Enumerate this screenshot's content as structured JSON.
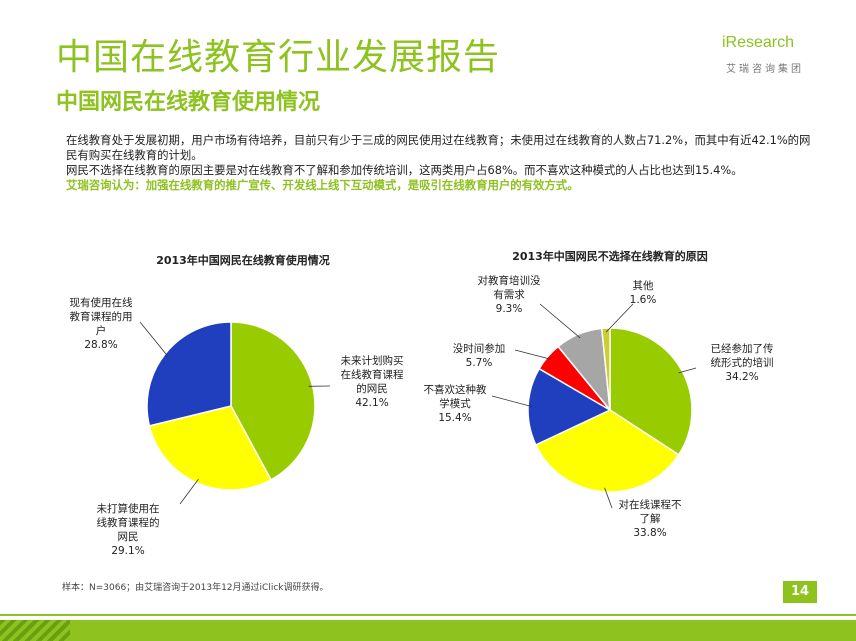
{
  "header": {
    "title": "中国在线教育行业发展报告",
    "subtitle": "中国网民在线教育使用情况",
    "logo_text": "iResearch",
    "logo_sub": "艾瑞咨询集团"
  },
  "body": {
    "para1": "在线教育处于发展初期，用户市场有待培养，目前只有少于三成的网民使用过在线教育；未使用过在线教育的人数占71.2%，而其中有近42.1%的网民有购买在线教育的计划。",
    "para2": "网民不选择在线教育的原因主要是对在线教育不了解和参加传统培训，这两类用户占68%。而不喜欢这种模式的人占比也达到15.4%。",
    "conclusion": "艾瑞咨询认为：加强在线教育的推广宣传、开发线上线下互动模式，是吸引在线教育用户的有效方式。"
  },
  "chart_data": [
    {
      "type": "pie",
      "title": "2013年中国网民在线教育使用情况",
      "slices": [
        {
          "label": "未来计划购买在线教育课程的网民",
          "label_lines": [
            "未来计划购买",
            "在线教育课程",
            "的网民"
          ],
          "value": 42.1,
          "value_text": "42.1%",
          "color": "#99cc00"
        },
        {
          "label": "未打算使用在线教育课程的网民",
          "label_lines": [
            "未打算使用在",
            "线教育课程的",
            "网民"
          ],
          "value": 29.1,
          "value_text": "29.1%",
          "color": "#ffff00"
        },
        {
          "label": "现有使用在线教育课程的用户",
          "label_lines": [
            "现有使用在线",
            "教育课程的用",
            "户"
          ],
          "value": 28.8,
          "value_text": "28.8%",
          "color": "#1f3fbf"
        }
      ]
    },
    {
      "type": "pie",
      "title": "2013年中国网民不选择在线教育的原因",
      "slices": [
        {
          "label": "已经参加了传统形式的培训",
          "label_lines": [
            "已经参加了传",
            "统形式的培训"
          ],
          "value": 34.2,
          "value_text": "34.2%",
          "color": "#99cc00"
        },
        {
          "label": "对在线课程不了解",
          "label_lines": [
            "对在线课程不",
            "了解"
          ],
          "value": 33.8,
          "value_text": "33.8%",
          "color": "#ffff00"
        },
        {
          "label": "不喜欢这种教学模式",
          "label_lines": [
            "不喜欢这种教",
            "学模式"
          ],
          "value": 15.4,
          "value_text": "15.4%",
          "color": "#1f3fbf"
        },
        {
          "label": "没时间参加",
          "label_lines": [
            "没时间参加"
          ],
          "value": 5.7,
          "value_text": "5.7%",
          "color": "#ff0000"
        },
        {
          "label": "对教育培训没有需求",
          "label_lines": [
            "对教育培训没",
            "有需求"
          ],
          "value": 9.3,
          "value_text": "9.3%",
          "color": "#a6a6a6"
        },
        {
          "label": "其他",
          "label_lines": [
            "其他"
          ],
          "value": 1.6,
          "value_text": "1.6%",
          "color": "#cccc33"
        }
      ]
    }
  ],
  "footer": {
    "footnote": "样本：N=3066；由艾瑞咨询于2013年12月通过iClick调研获得。",
    "page_number": "14"
  }
}
